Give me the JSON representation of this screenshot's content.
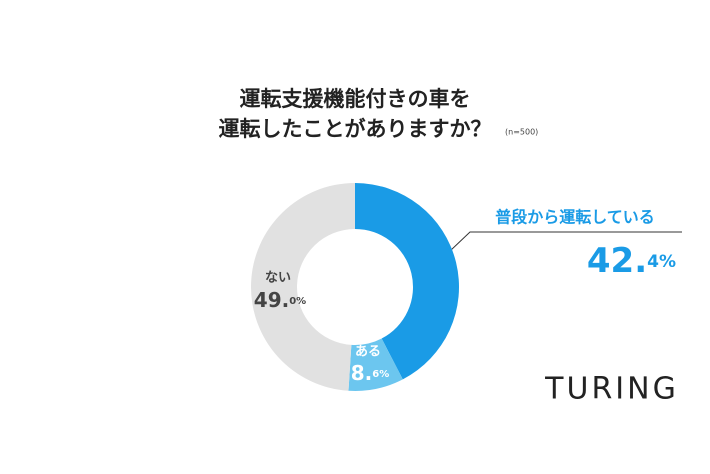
{
  "chart_data": {
    "type": "pie",
    "title": [
      "運転支援機能付きの車を",
      "運転したことがありますか？"
    ],
    "subtitle": "(n=500)",
    "categories": [
      "普段から運転している",
      "ある",
      "ない"
    ],
    "values": [
      42.4,
      8.6,
      49.0
    ],
    "value_labels": [
      "42.4%",
      "8.6%",
      "49.0%"
    ],
    "colors": [
      "#1a9be6",
      "#6cc6ef",
      "#e1e1e1"
    ],
    "donut": true,
    "logo": "TURING"
  }
}
